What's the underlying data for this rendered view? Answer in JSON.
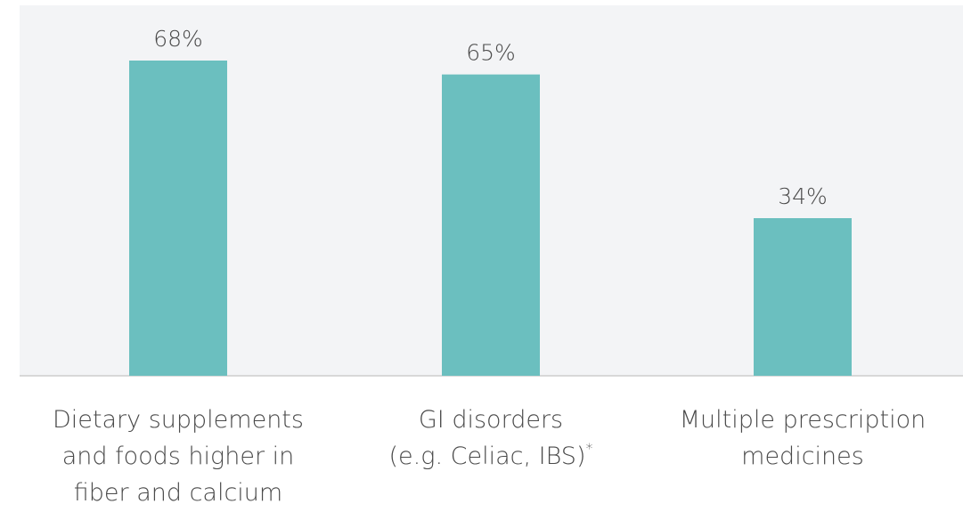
{
  "chart_data": {
    "type": "bar",
    "categories": [
      [
        "Dietary supplements",
        "and foods higher in",
        "fiber and calcium"
      ],
      [
        "GI disorders",
        "(e.g. Celiac, IBS)"
      ],
      [
        "Multiple prescription",
        "medicines"
      ]
    ],
    "category_footnotes": [
      "",
      "*",
      ""
    ],
    "values": [
      68,
      65,
      34
    ],
    "value_labels": [
      "68%",
      "65%",
      "34%"
    ],
    "ylim": [
      0,
      75
    ],
    "grid": false,
    "colors": {
      "bar": "#6bbfbf",
      "plot_background": "#f3f4f6",
      "text": "#4a4a4a"
    }
  }
}
